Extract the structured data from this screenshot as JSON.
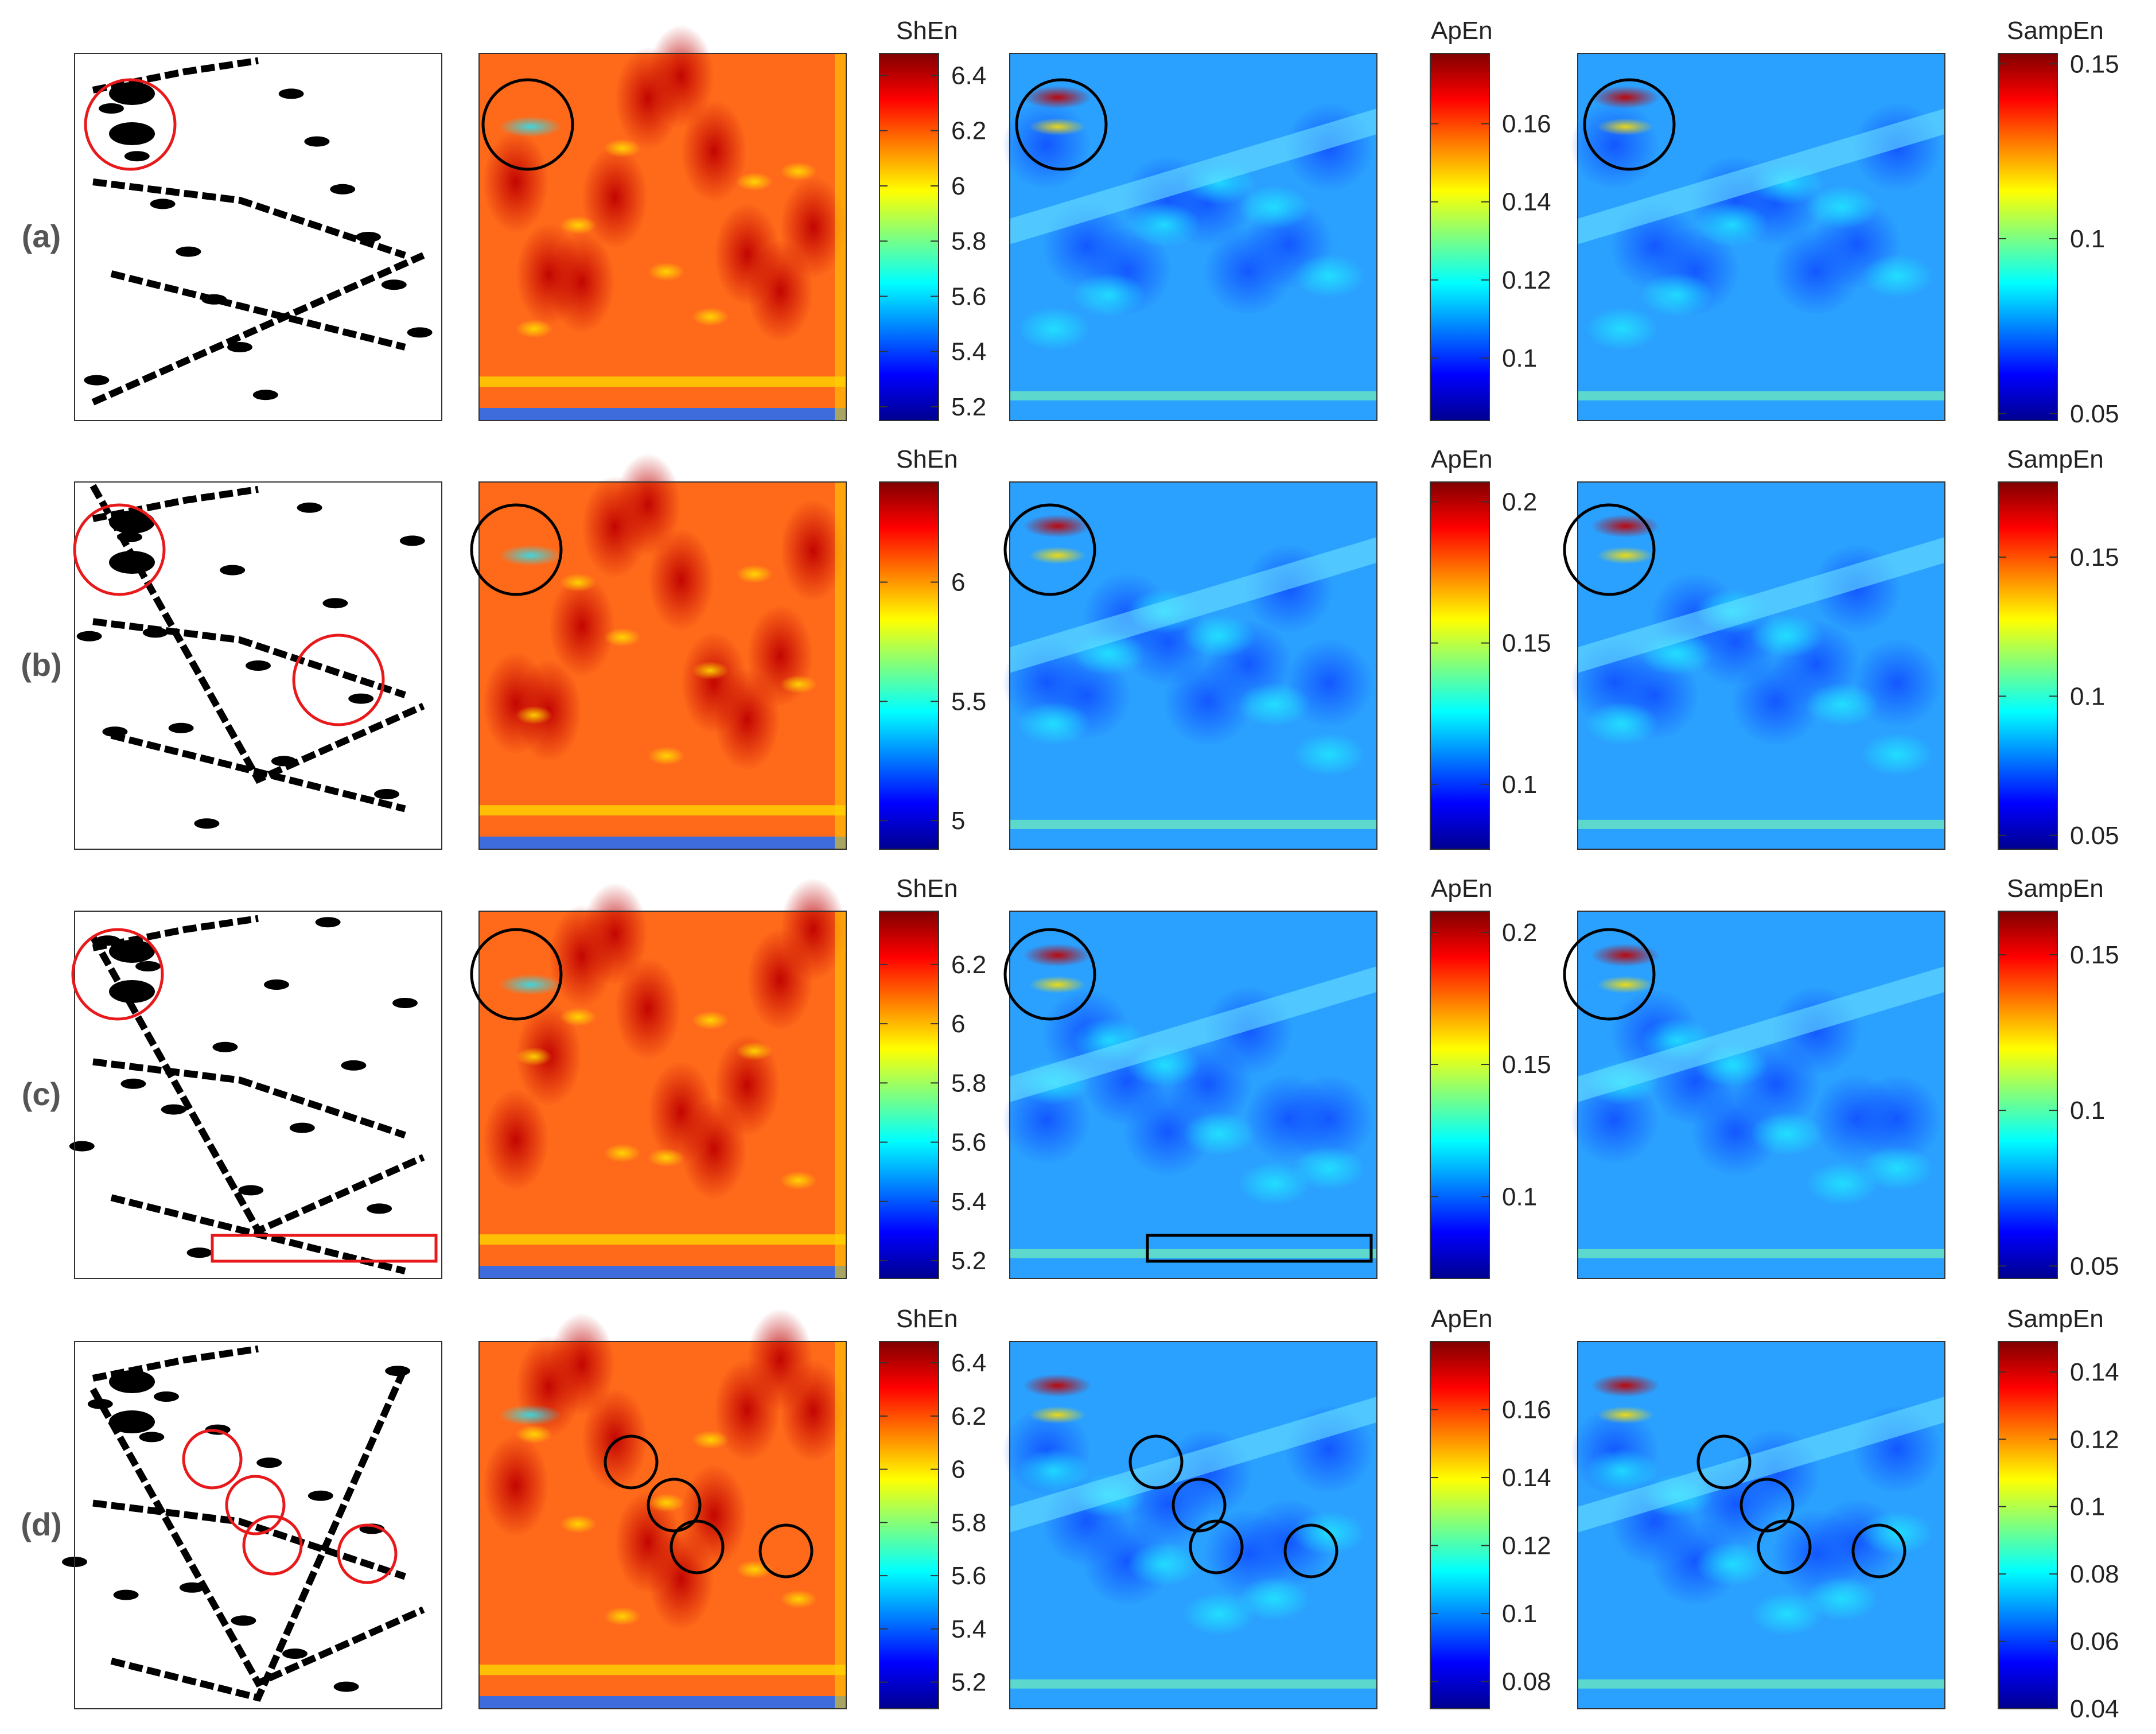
{
  "figure": {
    "rows": [
      {
        "label": "(a)",
        "shen_ticks": [
          "5.2",
          "5.4",
          "5.6",
          "5.8",
          "6",
          "6.2",
          "6.4"
        ],
        "apen_ticks": [
          "0.1",
          "0.12",
          "0.14",
          "0.16"
        ],
        "sampen_ticks": [
          "0.05",
          "0.1",
          "0.15"
        ]
      },
      {
        "label": "(b)",
        "shen_ticks": [
          "5",
          "5.5",
          "6"
        ],
        "apen_ticks": [
          "0.1",
          "0.15",
          "0.2"
        ],
        "sampen_ticks": [
          "0.05",
          "0.1",
          "0.15"
        ]
      },
      {
        "label": "(c)",
        "shen_ticks": [
          "5.2",
          "5.4",
          "5.6",
          "5.8",
          "6",
          "6.2"
        ],
        "apen_ticks": [
          "0.1",
          "0.15",
          "0.2"
        ],
        "sampen_ticks": [
          "0.05",
          "0.1",
          "0.15"
        ]
      },
      {
        "label": "(d)",
        "shen_ticks": [
          "5.2",
          "5.4",
          "5.6",
          "5.8",
          "6",
          "6.2",
          "6.4"
        ],
        "apen_ticks": [
          "0.08",
          "0.1",
          "0.12",
          "0.14",
          "0.16"
        ],
        "sampen_ticks": [
          "0.04",
          "0.06",
          "0.08",
          "0.1",
          "0.12",
          "0.14"
        ]
      }
    ],
    "colorbar_titles": [
      "ShEn",
      "ApEn",
      "SampEn"
    ],
    "colors": {
      "circle_red": "#e8191b",
      "circle_black": "#000000",
      "jet_low": "#00008f",
      "jet_high": "#800000"
    }
  },
  "chart_data": [
    {
      "type": "heatmap",
      "panel": "a-ShEn",
      "title": "ShEn",
      "ylim": [
        5.15,
        6.48
      ],
      "ticks": [
        5.2,
        5.4,
        5.6,
        5.8,
        6,
        6.2,
        6.4
      ]
    },
    {
      "type": "heatmap",
      "panel": "a-ApEn",
      "title": "ApEn",
      "ylim": [
        0.084,
        0.178
      ],
      "ticks": [
        0.1,
        0.12,
        0.14,
        0.16
      ]
    },
    {
      "type": "heatmap",
      "panel": "a-SampEn",
      "title": "SampEn",
      "ylim": [
        0.048,
        0.153
      ],
      "ticks": [
        0.05,
        0.1,
        0.15
      ]
    },
    {
      "type": "heatmap",
      "panel": "b-ShEn",
      "title": "ShEn",
      "ylim": [
        4.88,
        6.42
      ],
      "ticks": [
        5,
        5.5,
        6
      ]
    },
    {
      "type": "heatmap",
      "panel": "b-ApEn",
      "title": "ApEn",
      "ylim": [
        0.077,
        0.207
      ],
      "ticks": [
        0.1,
        0.15,
        0.2
      ]
    },
    {
      "type": "heatmap",
      "panel": "b-SampEn",
      "title": "SampEn",
      "ylim": [
        0.045,
        0.177
      ],
      "ticks": [
        0.05,
        0.1,
        0.15
      ]
    },
    {
      "type": "heatmap",
      "panel": "c-ShEn",
      "title": "ShEn",
      "ylim": [
        5.14,
        6.38
      ],
      "ticks": [
        5.2,
        5.4,
        5.6,
        5.8,
        6,
        6.2
      ]
    },
    {
      "type": "heatmap",
      "panel": "c-ApEn",
      "title": "ApEn",
      "ylim": [
        0.069,
        0.208
      ],
      "ticks": [
        0.1,
        0.15,
        0.2
      ]
    },
    {
      "type": "heatmap",
      "panel": "c-SampEn",
      "title": "SampEn",
      "ylim": [
        0.046,
        0.164
      ],
      "ticks": [
        0.05,
        0.1,
        0.15
      ]
    },
    {
      "type": "heatmap",
      "panel": "d-ShEn",
      "title": "ShEn",
      "ylim": [
        5.1,
        6.48
      ],
      "ticks": [
        5.2,
        5.4,
        5.6,
        5.8,
        6,
        6.2,
        6.4
      ]
    },
    {
      "type": "heatmap",
      "panel": "d-ApEn",
      "title": "ApEn",
      "ylim": [
        0.072,
        0.18
      ],
      "ticks": [
        0.08,
        0.1,
        0.12,
        0.14,
        0.16
      ]
    },
    {
      "type": "heatmap",
      "panel": "d-SampEn",
      "title": "SampEn",
      "ylim": [
        0.04,
        0.149
      ],
      "ticks": [
        0.04,
        0.06,
        0.08,
        0.1,
        0.12,
        0.14
      ]
    }
  ]
}
